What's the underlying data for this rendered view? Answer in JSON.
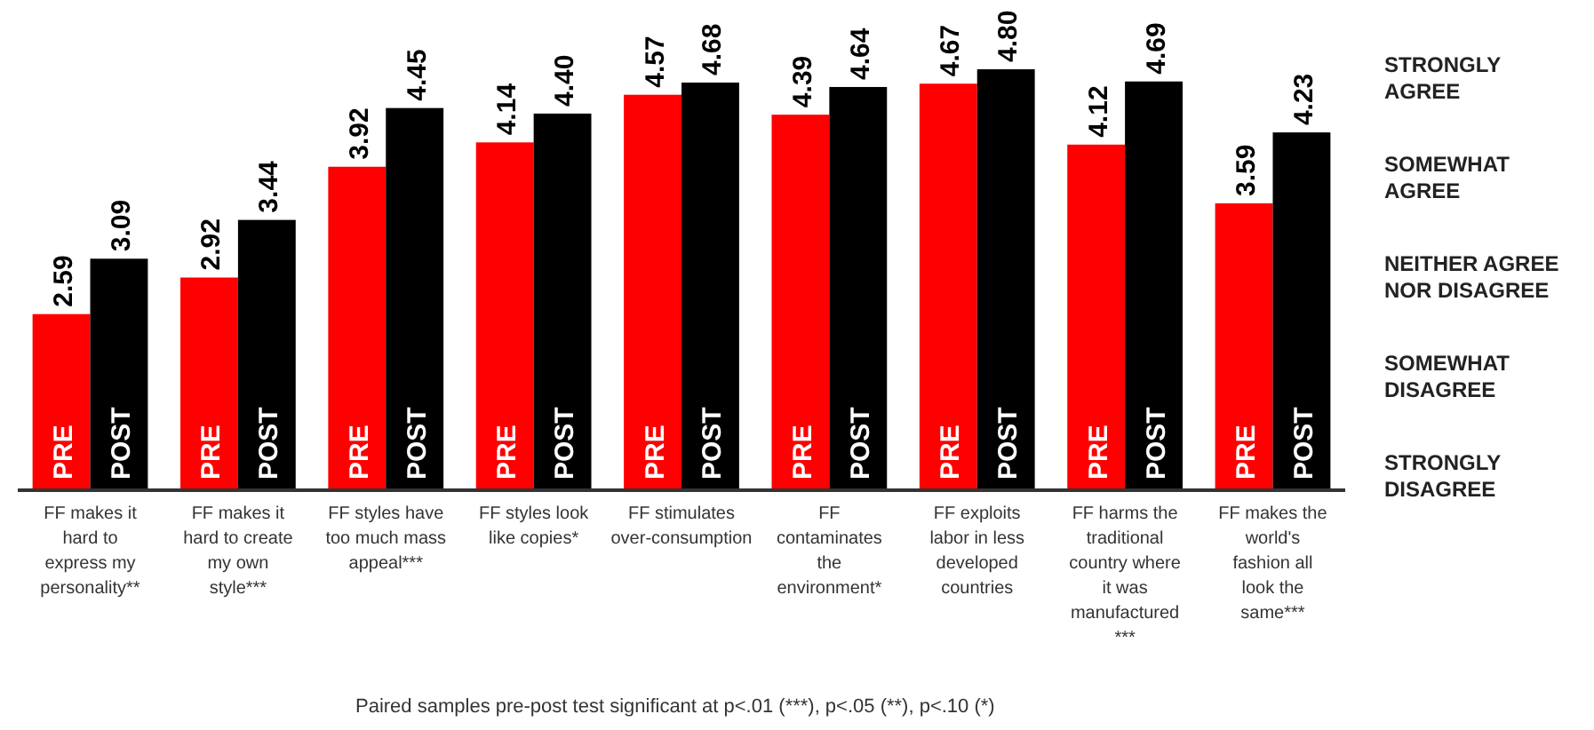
{
  "chart_data": {
    "type": "bar",
    "categories": [
      "FF makes it hard to express my personality**",
      "FF makes it hard to create my own style***",
      "FF styles have too much mass appeal***",
      "FF styles look like copies*",
      "FF stimulates over-consumption",
      "FF contaminates the environment*",
      "FF exploits labor in less developed countries",
      "FF harms the traditional country where it was manufactured ***",
      "FF makes the world's fashion all look the same***"
    ],
    "series": [
      {
        "name": "PRE",
        "color": "#ff0000",
        "values": [
          2.59,
          2.92,
          3.92,
          4.14,
          4.57,
          4.39,
          4.67,
          4.12,
          3.59
        ],
        "value_labels": [
          "2.59",
          "2.92",
          "3.92",
          "4.14",
          "4.57",
          "4.39",
          "4.67",
          "4.12",
          "3.59"
        ]
      },
      {
        "name": "POST",
        "color": "#000000",
        "values": [
          3.09,
          3.44,
          4.45,
          4.4,
          4.68,
          4.64,
          4.8,
          4.69,
          4.23
        ],
        "value_labels": [
          "3.09",
          "3.44",
          "4.45",
          "4.40",
          "4.68",
          "4.64",
          "4.80",
          "4.69",
          "4.23"
        ]
      }
    ],
    "ylim": [
      1,
      4.8
    ],
    "annotations": [
      "STRONGLY AGREE",
      "SOMEWHAT AGREE",
      "NEITHER AGREE NOR DISAGREE",
      "SOMEWHAT DISAGREE",
      "STRONGLY DISAGREE",
      "Paired samples pre-post test significant at p<.01 (***), p<.05 (**), p<.10 (*)"
    ]
  }
}
